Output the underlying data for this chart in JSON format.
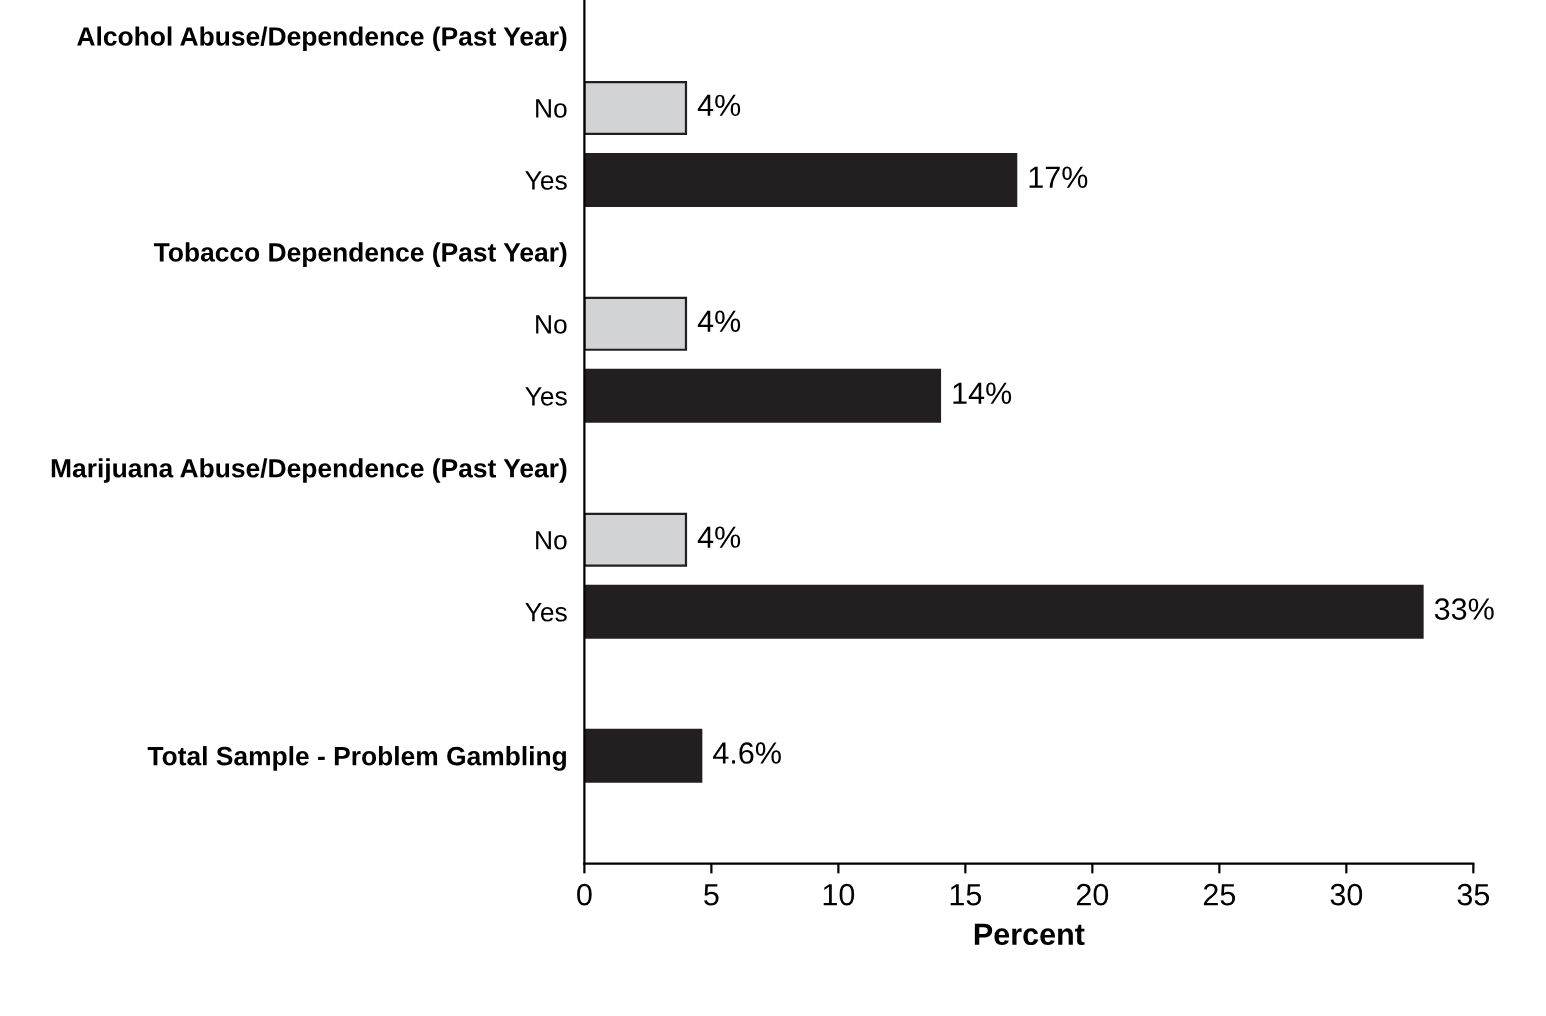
{
  "chart_data": {
    "type": "bar",
    "orientation": "horizontal",
    "xlabel": "Percent",
    "categories": [
      "Alcohol Abuse/Dependence (Past Year)",
      "No",
      "Yes",
      "Tobacco Dependence (Past Year)",
      "No",
      "Yes",
      "Marijuana Abuse/Dependence (Past Year)",
      "No",
      "Yes",
      null,
      "Total Sample - Problem Gambling",
      null
    ],
    "values": [
      null,
      4,
      17,
      null,
      4,
      14,
      null,
      4,
      33,
      null,
      4.6,
      null
    ],
    "colors": [
      null,
      "#d1d3d4",
      "#231f20",
      null,
      "#d1d3d4",
      "#231f20",
      null,
      "#d1d3d4",
      "#231f20",
      null,
      "#231f20",
      null
    ],
    "value_labels": [
      null,
      "4%",
      "17%",
      null,
      "4%",
      "14%",
      null,
      "4%",
      "33%",
      null,
      "4.6%",
      null
    ],
    "xlim": [
      0,
      35
    ],
    "xticks": [
      0,
      5,
      10,
      15,
      20,
      25,
      30,
      35
    ],
    "grid": false,
    "legend": false
  }
}
